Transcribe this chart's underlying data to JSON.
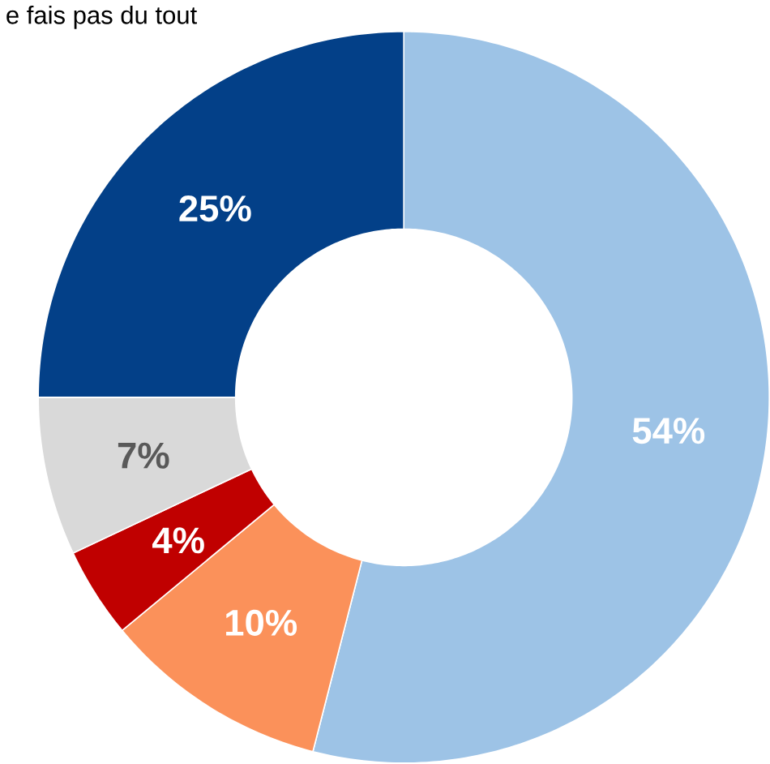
{
  "chart_data": {
    "type": "donut",
    "categories": [
      null,
      null,
      null,
      null,
      null
    ],
    "values": [
      54,
      10,
      4,
      7,
      25
    ],
    "colors": [
      "#9dc3e6",
      "#fb915a",
      "#c00000",
      "#d9d9d9",
      "#034088"
    ],
    "value_labels": [
      "54%",
      "10%",
      "4%",
      "7%",
      "25%"
    ],
    "annotations": [
      "e fais pas du tout"
    ]
  }
}
